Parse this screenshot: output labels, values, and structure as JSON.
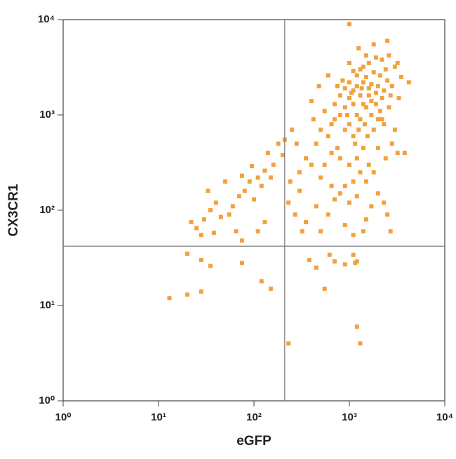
{
  "chart_data": {
    "type": "scatter",
    "x_label": "eGFP",
    "y_label": "CX3CR1",
    "x_scale": "log",
    "y_scale": "log",
    "xlim": [
      1,
      10000
    ],
    "ylim": [
      1,
      10000
    ],
    "xticks": [
      {
        "value": 1,
        "label": "10⁰"
      },
      {
        "value": 10,
        "label": "10¹"
      },
      {
        "value": 100,
        "label": "10²"
      },
      {
        "value": 1000,
        "label": "10³"
      },
      {
        "value": 10000,
        "label": "10⁴"
      }
    ],
    "yticks": [
      {
        "value": 1,
        "label": "10⁰"
      },
      {
        "value": 10,
        "label": "10¹"
      },
      {
        "value": 100,
        "label": "10²"
      },
      {
        "value": 1000,
        "label": "10³"
      },
      {
        "value": 10000,
        "label": "10⁴"
      }
    ],
    "quadrant_x": 210,
    "quadrant_y": 42,
    "color": "#f2a23c",
    "x": [
      1000,
      1100,
      1200,
      1300,
      900,
      800,
      1400,
      1500,
      1600,
      1700,
      1800,
      2000,
      2200,
      1200,
      1000,
      900,
      700,
      600,
      1100,
      1300,
      1500,
      1700,
      1900,
      2100,
      2400,
      1400,
      1600,
      1200,
      1000,
      800,
      700,
      650,
      550,
      500,
      1800,
      2000,
      2300,
      2600,
      2800,
      3000,
      1100,
      1300,
      900,
      850,
      750,
      1900,
      2200,
      1500,
      1000,
      1250,
      1800,
      2500,
      3200,
      3500,
      3200,
      2800,
      2400,
      2000,
      1600,
      1400,
      1200,
      1000,
      800,
      650,
      550,
      450,
      420,
      400,
      480,
      600,
      1400,
      1600,
      1700,
      1900,
      1100,
      950,
      1050,
      1350,
      1450,
      1250,
      1150,
      1550,
      2100,
      2300,
      2500,
      2700,
      1000,
      2200,
      3000,
      3300,
      3800,
      4200,
      2600,
      750,
      1300,
      1500,
      1800,
      1100,
      900,
      2000,
      2300,
      2500,
      1700,
      1500,
      2700,
      1200,
      1000,
      800,
      650,
      500,
      400,
      350,
      300,
      280,
      250,
      300,
      450,
      600,
      700,
      900,
      1400,
      1100,
      500,
      350,
      270,
      240,
      230,
      320,
      200,
      160,
      130,
      110,
      90,
      80,
      70,
      100,
      120,
      150,
      60,
      55,
      45,
      40,
      35,
      30,
      25,
      22,
      33,
      50,
      75,
      95,
      140,
      180,
      210,
      65,
      75,
      110,
      130,
      28,
      38,
      13,
      20,
      28,
      35,
      75,
      120,
      150,
      20,
      28,
      900,
      1200,
      550,
      700,
      1200,
      1300,
      230,
      1150,
      380,
      450,
      620,
      1100
    ],
    "y": [
      1500,
      1800,
      2000,
      1600,
      1200,
      1000,
      2200,
      2500,
      1900,
      1400,
      2800,
      2000,
      1500,
      1000,
      800,
      700,
      900,
      600,
      600,
      900,
      1200,
      1000,
      1300,
      2600,
      3000,
      3200,
      3500,
      2600,
      2200,
      1600,
      1300,
      800,
      1100,
      700,
      700,
      900,
      800,
      1200,
      2000,
      3200,
      2900,
      3000,
      1900,
      2300,
      2000,
      4000,
      3800,
      4200,
      3500,
      5000,
      5500,
      6000,
      3500,
      2500,
      400,
      500,
      350,
      450,
      300,
      450,
      350,
      300,
      350,
      400,
      300,
      500,
      900,
      1400,
      2000,
      2600,
      1300,
      1600,
      2100,
      1700,
      1300,
      1000,
      1700,
      1900,
      800,
      700,
      500,
      600,
      1100,
      1800,
      2300,
      1600,
      9000,
      900,
      700,
      1500,
      400,
      2200,
      4200,
      450,
      250,
      200,
      250,
      200,
      180,
      150,
      120,
      90,
      110,
      80,
      60,
      140,
      120,
      150,
      180,
      220,
      300,
      350,
      250,
      500,
      700,
      160,
      110,
      90,
      130,
      70,
      60,
      55,
      60,
      75,
      90,
      200,
      120,
      60,
      380,
      300,
      260,
      220,
      200,
      160,
      140,
      130,
      180,
      220,
      110,
      90,
      85,
      120,
      100,
      80,
      65,
      75,
      160,
      200,
      230,
      290,
      400,
      500,
      550,
      60,
      48,
      60,
      75,
      55,
      58,
      12,
      13,
      14,
      26,
      28,
      18,
      15,
      35,
      30,
      27,
      29,
      15,
      29,
      6,
      4,
      4,
      28,
      30,
      25,
      34,
      34
    ]
  }
}
